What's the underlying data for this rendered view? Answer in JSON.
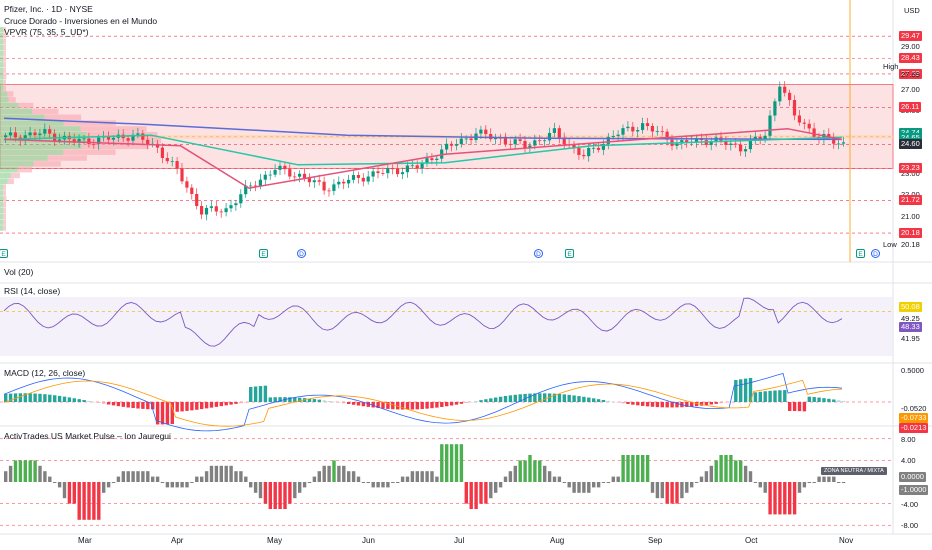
{
  "header": {
    "symbol": "Pfizer, Inc. · 1D · NYSE",
    "indicator1": "Cruce Dorado - Inversiones en el Mundo",
    "indicator2": "VPVR (75, 35, 5_UD*)",
    "currency": "USD"
  },
  "panes": {
    "vol": "Vol (20)",
    "rsi": "RSI (14, close)",
    "macd": "MACD (12, 26, close)",
    "pulse": "ActivTrades US Market Pulse – Ion Jauregui"
  },
  "price_axis": {
    "ticks": [
      "29.00",
      "27.00",
      "26.00",
      "25.00",
      "23.00",
      "22.00",
      "21.00"
    ],
    "high_label": "High",
    "high_value": "27.69",
    "low_label": "Low",
    "low_value": "20.18",
    "red_tags": [
      "29.47",
      "28.43",
      "27.69",
      "26.11",
      "24.72",
      "24.36",
      "23.23",
      "21.72",
      "20.18"
    ],
    "teal_tags": [
      "24.74",
      "24.65",
      "24.59"
    ],
    "dark_tags": [
      "24.60"
    ]
  },
  "rsi_axis": {
    "tags": [
      "50.08",
      "48.33"
    ],
    "ticks": [
      "49.25",
      "41.95"
    ]
  },
  "macd_axis": {
    "ticks": [
      "0.5000",
      "-0.0520"
    ],
    "tags": [
      "-0.0733",
      "-0.0213"
    ]
  },
  "pulse_axis": {
    "ticks": [
      "8.00",
      "4.00",
      "-4.00",
      "-8.00"
    ],
    "tags": [
      "0.0000",
      "-1.0000"
    ],
    "zone_label": "ZONA NEUTRA / MIXTA"
  },
  "months": [
    "Mar",
    "Apr",
    "May",
    "Jun",
    "Jul",
    "Aug",
    "Sep",
    "Oct",
    "Nov"
  ],
  "events": [
    "E",
    "E",
    "D",
    "D",
    "E",
    "E",
    "D"
  ],
  "colors": {
    "up": "#089981",
    "down": "#f23645",
    "sma_slow": "#5b6bd8",
    "sma_fast": "#e55178",
    "sma_mid": "#26c6a6",
    "zone": "#fde2e4",
    "macd": "#2962ff",
    "signal": "#ff9800",
    "rsi": "#7e57c2",
    "pulse_up": "#4caf50",
    "pulse_down": "#f23645",
    "pulse_neutral": "#808080"
  },
  "chart_data": {
    "type": "candlestick",
    "title": "Pfizer, Inc. · 1D · NYSE",
    "ylabel": "USD",
    "ylim": [
      19.8,
      30.0
    ],
    "x_months": [
      "Mar",
      "Apr",
      "May",
      "Jun",
      "Jul",
      "Aug",
      "Sep",
      "Oct",
      "Nov"
    ],
    "close_path": [
      {
        "t": 0,
        "c": 24.7
      },
      {
        "t": 8,
        "c": 24.9
      },
      {
        "t": 14,
        "c": 24.5
      },
      {
        "t": 20,
        "c": 24.6
      },
      {
        "t": 26,
        "c": 24.8
      },
      {
        "t": 31,
        "c": 24.2
      },
      {
        "t": 35,
        "c": 23.1
      },
      {
        "t": 40,
        "c": 21.2
      },
      {
        "t": 45,
        "c": 21.3
      },
      {
        "t": 50,
        "c": 22.4
      },
      {
        "t": 55,
        "c": 23.2
      },
      {
        "t": 60,
        "c": 22.9
      },
      {
        "t": 65,
        "c": 22.3
      },
      {
        "t": 72,
        "c": 22.8
      },
      {
        "t": 78,
        "c": 23.1
      },
      {
        "t": 84,
        "c": 23.3
      },
      {
        "t": 90,
        "c": 24.2
      },
      {
        "t": 96,
        "c": 24.9
      },
      {
        "t": 101,
        "c": 24.6
      },
      {
        "t": 106,
        "c": 24.3
      },
      {
        "t": 112,
        "c": 24.9
      },
      {
        "t": 118,
        "c": 23.8
      },
      {
        "t": 124,
        "c": 24.8
      },
      {
        "t": 130,
        "c": 25.3
      },
      {
        "t": 137,
        "c": 24.4
      },
      {
        "t": 144,
        "c": 24.6
      },
      {
        "t": 150,
        "c": 24.2
      },
      {
        "t": 155,
        "c": 24.8
      },
      {
        "t": 158,
        "c": 27.3
      },
      {
        "t": 161,
        "c": 25.7
      },
      {
        "t": 166,
        "c": 24.7
      },
      {
        "t": 171,
        "c": 24.4
      }
    ],
    "moving_averages": [
      {
        "name": "",
        "color": "#5b6bd8",
        "points": [
          [
            0,
            25.6
          ],
          [
            30,
            25.3
          ],
          [
            70,
            24.8
          ],
          [
            110,
            24.65
          ],
          [
            171,
            24.6
          ]
        ]
      },
      {
        "name": "",
        "color": "#26c6a6",
        "points": [
          [
            0,
            24.6
          ],
          [
            30,
            24.8
          ],
          [
            60,
            23.4
          ],
          [
            90,
            23.5
          ],
          [
            120,
            24.3
          ],
          [
            171,
            24.7
          ]
        ]
      },
      {
        "name": "",
        "color": "#e55178",
        "points": [
          [
            0,
            24.6
          ],
          [
            36,
            24.3
          ],
          [
            50,
            22.3
          ],
          [
            90,
            23.9
          ],
          [
            130,
            24.6
          ],
          [
            160,
            25.1
          ],
          [
            171,
            24.6
          ]
        ]
      }
    ],
    "zone": {
      "from": 23.23,
      "to": 27.2
    },
    "levels": [
      29.47,
      28.43,
      27.69,
      26.11,
      24.72,
      24.36,
      23.23,
      21.72,
      20.18
    ]
  }
}
